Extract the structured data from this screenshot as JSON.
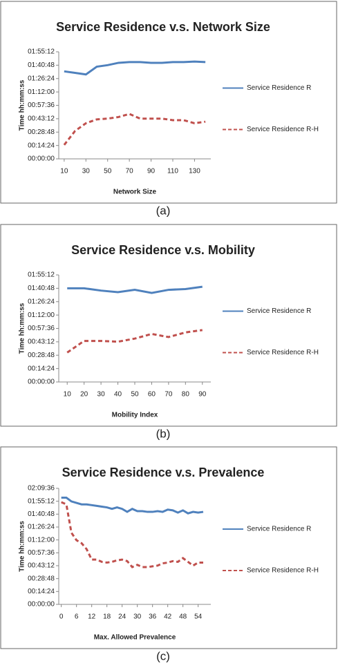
{
  "chart_data": [
    {
      "type": "line",
      "title": "Service Residence v.s. Network Size",
      "xlabel": "Network Size",
      "ylabel": "Time hh:mm:ss",
      "caption": "(a)",
      "x": [
        10,
        20,
        30,
        40,
        50,
        60,
        70,
        80,
        90,
        100,
        110,
        120,
        130,
        140
      ],
      "xlim": [
        5,
        145
      ],
      "xticks": [
        10,
        30,
        50,
        70,
        90,
        110,
        130
      ],
      "ylim": [
        0,
        6912
      ],
      "yticks": [
        {
          "value": 0,
          "label": "00:00:00"
        },
        {
          "value": 864,
          "label": "00:14:24"
        },
        {
          "value": 1728,
          "label": "00:28:48"
        },
        {
          "value": 2592,
          "label": "00:43:12"
        },
        {
          "value": 3456,
          "label": "00:57:36"
        },
        {
          "value": 4320,
          "label": "01:12:00"
        },
        {
          "value": 5184,
          "label": "01:26:24"
        },
        {
          "value": 6048,
          "label": "01:40:48"
        },
        {
          "value": 6912,
          "label": "01:55:12"
        }
      ],
      "legend": "right",
      "series": [
        {
          "name": "Service Residence R",
          "color": "#4f81bd",
          "dash": false,
          "values": [
            5650,
            5550,
            5450,
            5950,
            6050,
            6200,
            6250,
            6250,
            6200,
            6200,
            6250,
            6250,
            6280,
            6250
          ]
        },
        {
          "name": "Service Residence R-H",
          "color": "#c0504d",
          "dash": true,
          "values": [
            900,
            1800,
            2300,
            2550,
            2600,
            2700,
            2900,
            2600,
            2600,
            2600,
            2500,
            2500,
            2300,
            2400
          ]
        }
      ]
    },
    {
      "type": "line",
      "title": "Service Residence v.s. Mobility",
      "xlabel": "Mobility Index",
      "ylabel": "Time hh:mm:ss",
      "caption": "(b)",
      "x": [
        10,
        20,
        30,
        40,
        50,
        60,
        70,
        80,
        90
      ],
      "xlim": [
        5,
        95
      ],
      "xticks": [
        10,
        20,
        30,
        40,
        50,
        60,
        70,
        80,
        90
      ],
      "ylim": [
        0,
        6912
      ],
      "yticks": [
        {
          "value": 0,
          "label": "00:00:00"
        },
        {
          "value": 864,
          "label": "00:14:24"
        },
        {
          "value": 1728,
          "label": "00:28:48"
        },
        {
          "value": 2592,
          "label": "00:43:12"
        },
        {
          "value": 3456,
          "label": "00:57:36"
        },
        {
          "value": 4320,
          "label": "01:12:00"
        },
        {
          "value": 5184,
          "label": "01:26:24"
        },
        {
          "value": 6048,
          "label": "01:40:48"
        },
        {
          "value": 6912,
          "label": "01:55:12"
        }
      ],
      "legend": "right",
      "series": [
        {
          "name": "Service Residence R",
          "color": "#4f81bd",
          "dash": false,
          "values": [
            6050,
            6050,
            5900,
            5800,
            5950,
            5750,
            5950,
            6000,
            6150
          ]
        },
        {
          "name": "Service Residence R-H",
          "color": "#c0504d",
          "dash": true,
          "values": [
            1900,
            2650,
            2650,
            2600,
            2800,
            3100,
            2900,
            3200,
            3350
          ]
        }
      ]
    },
    {
      "type": "line",
      "title": "Service Residence v.s. Prevalence",
      "xlabel": "Max. Allowed Prevalence",
      "ylabel": "Time hh:mm:ss",
      "caption": "(c)",
      "x": [
        0,
        2,
        4,
        6,
        8,
        10,
        12,
        14,
        16,
        18,
        20,
        22,
        24,
        26,
        28,
        30,
        32,
        34,
        36,
        38,
        40,
        42,
        44,
        46,
        48,
        50,
        52,
        54,
        56
      ],
      "xlim": [
        -1,
        59
      ],
      "xticks": [
        0,
        6,
        12,
        18,
        24,
        30,
        36,
        42,
        48,
        54
      ],
      "ylim": [
        0,
        7776
      ],
      "yticks": [
        {
          "value": 0,
          "label": "00:00:00"
        },
        {
          "value": 864,
          "label": "00:14:24"
        },
        {
          "value": 1728,
          "label": "00:28:48"
        },
        {
          "value": 2592,
          "label": "00:43:12"
        },
        {
          "value": 3456,
          "label": "00:57:36"
        },
        {
          "value": 4320,
          "label": "01:12:00"
        },
        {
          "value": 5184,
          "label": "01:26:24"
        },
        {
          "value": 6048,
          "label": "01:40:48"
        },
        {
          "value": 6912,
          "label": "01:55:12"
        },
        {
          "value": 7776,
          "label": "02:09:36"
        }
      ],
      "legend": "right",
      "series": [
        {
          "name": "Service Residence R",
          "color": "#4f81bd",
          "dash": false,
          "values": [
            7150,
            7150,
            6900,
            6800,
            6700,
            6700,
            6650,
            6600,
            6550,
            6500,
            6400,
            6500,
            6400,
            6200,
            6400,
            6250,
            6250,
            6200,
            6200,
            6250,
            6200,
            6350,
            6300,
            6150,
            6300,
            6100,
            6200,
            6150,
            6200
          ]
        },
        {
          "name": "Service Residence R-H",
          "color": "#c0504d",
          "dash": true,
          "values": [
            6850,
            6700,
            4800,
            4300,
            4100,
            3700,
            3000,
            3000,
            2850,
            2800,
            2850,
            2950,
            3000,
            2900,
            2500,
            2650,
            2500,
            2500,
            2550,
            2600,
            2750,
            2800,
            2900,
            2850,
            3100,
            2850,
            2600,
            2800,
            2800
          ]
        }
      ]
    }
  ]
}
